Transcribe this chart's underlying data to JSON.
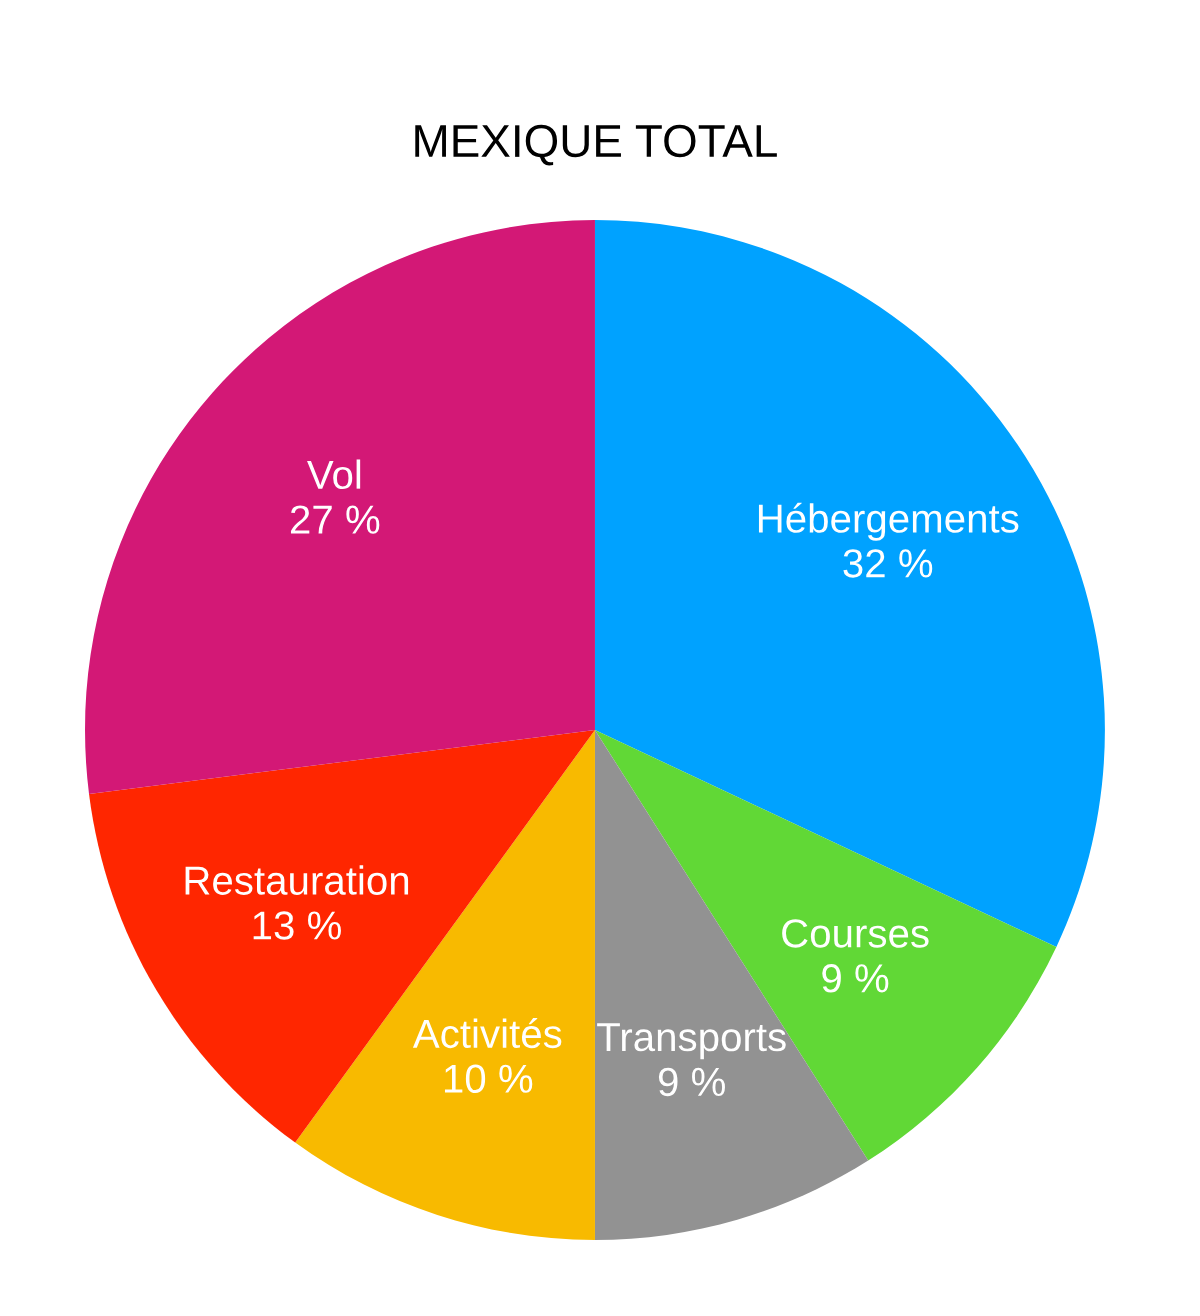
{
  "chart_data": {
    "type": "pie",
    "title": "MEXIQUE TOTAL",
    "categories": [
      "Hébergements",
      "Courses",
      "Transports",
      "Activités",
      "Restauration",
      "Vol"
    ],
    "values": [
      32,
      9,
      9,
      10,
      13,
      27
    ],
    "value_labels": [
      "32 %",
      "9 %",
      "9 %",
      "10 %",
      "13 %",
      "27 %"
    ],
    "colors": [
      "#00a2ff",
      "#61d836",
      "#929292",
      "#f8ba00",
      "#ff2600",
      "#d31876"
    ],
    "legend": false
  }
}
